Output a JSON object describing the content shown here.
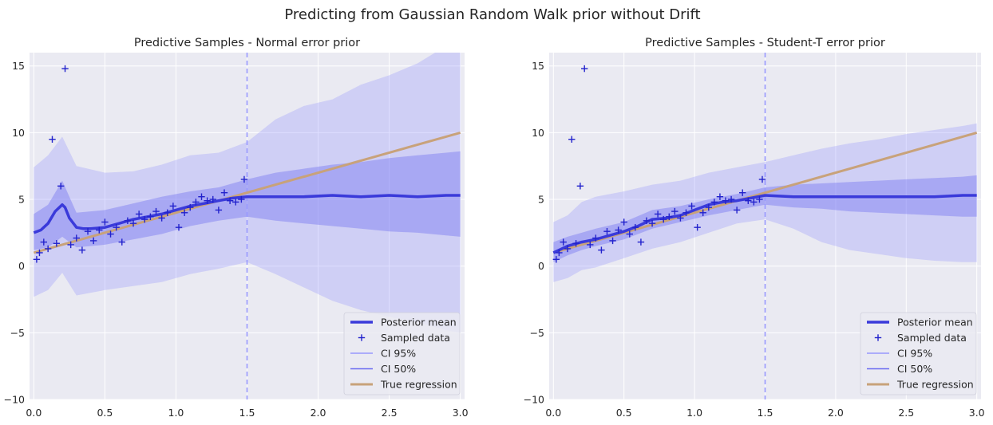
{
  "figure": {
    "suptitle": "Predicting from Gaussian Random Walk prior without Drift"
  },
  "colors": {
    "axes_bg": "#EAEAF2",
    "grid": "#ffffff",
    "mean": "#3A3ADA",
    "data_marker": "#2222CC",
    "ci95": "#8888FF",
    "ci50": "#6A6AF0",
    "regression": "#C8A27A",
    "vline": "#9999FF"
  },
  "chart_data": [
    {
      "type": "line",
      "title": "Predictive Samples - Normal error prior",
      "xlabel": "",
      "ylabel": "",
      "xlim": [
        -0.03,
        3.03
      ],
      "ylim": [
        -10,
        16
      ],
      "xticks": [
        0.0,
        0.5,
        1.0,
        1.5,
        2.0,
        2.5,
        3.0
      ],
      "xtick_labels": [
        "0.0",
        "0.5",
        "1.0",
        "1.5",
        "2.0",
        "2.5",
        "3.0"
      ],
      "yticks": [
        -10,
        -5,
        0,
        5,
        10,
        15
      ],
      "ytick_labels": [
        "−10",
        "−5",
        "0",
        "5",
        "10",
        "15"
      ],
      "grid": true,
      "legend_position": "lower-right",
      "vline_x": 1.5,
      "legend": [
        "Posterior mean",
        "Sampled data",
        "CI 95%",
        "CI 50%",
        "True regression"
      ],
      "series": [
        {
          "name": "Posterior mean",
          "x": [
            0.0,
            0.05,
            0.1,
            0.15,
            0.2,
            0.22,
            0.25,
            0.3,
            0.35,
            0.4,
            0.5,
            0.6,
            0.7,
            0.8,
            0.9,
            1.0,
            1.1,
            1.2,
            1.3,
            1.4,
            1.5,
            1.7,
            1.9,
            2.1,
            2.3,
            2.5,
            2.7,
            2.9,
            3.0
          ],
          "y": [
            2.5,
            2.7,
            3.2,
            4.1,
            4.6,
            4.4,
            3.6,
            2.9,
            2.8,
            2.8,
            2.9,
            3.2,
            3.5,
            3.7,
            3.9,
            4.2,
            4.5,
            4.7,
            4.9,
            5.1,
            5.2,
            5.2,
            5.2,
            5.3,
            5.2,
            5.3,
            5.2,
            5.3,
            5.3
          ]
        },
        {
          "name": "Sampled data",
          "x": [
            0.02,
            0.04,
            0.07,
            0.1,
            0.13,
            0.16,
            0.19,
            0.22,
            0.26,
            0.3,
            0.34,
            0.38,
            0.42,
            0.46,
            0.5,
            0.54,
            0.58,
            0.62,
            0.66,
            0.7,
            0.74,
            0.78,
            0.82,
            0.86,
            0.9,
            0.94,
            0.98,
            1.02,
            1.06,
            1.1,
            1.14,
            1.18,
            1.22,
            1.26,
            1.3,
            1.34,
            1.38,
            1.42,
            1.46,
            1.48
          ],
          "y": [
            0.5,
            1.0,
            1.8,
            1.3,
            9.5,
            1.7,
            6.0,
            14.8,
            1.6,
            2.1,
            1.2,
            2.6,
            1.9,
            2.7,
            3.3,
            2.4,
            2.9,
            1.8,
            3.4,
            3.2,
            3.9,
            3.5,
            3.7,
            4.1,
            3.6,
            4.0,
            4.5,
            2.9,
            4.0,
            4.4,
            4.8,
            5.2,
            4.9,
            5.0,
            4.2,
            5.5,
            4.9,
            4.8,
            5.0,
            6.5
          ]
        },
        {
          "name": "CI 95%",
          "x": [
            0.0,
            0.1,
            0.2,
            0.3,
            0.5,
            0.7,
            0.9,
            1.1,
            1.3,
            1.5,
            1.7,
            1.9,
            2.1,
            2.3,
            2.5,
            2.7,
            2.9,
            3.0
          ],
          "lower": [
            -2.3,
            -1.8,
            -0.5,
            -2.2,
            -1.8,
            -1.5,
            -1.2,
            -0.6,
            -0.2,
            0.3,
            -0.6,
            -1.6,
            -2.6,
            -3.3,
            -3.8,
            -4.2,
            -4.8,
            -5.0
          ],
          "upper": [
            7.4,
            8.3,
            9.7,
            7.5,
            7.0,
            7.1,
            7.6,
            8.3,
            8.5,
            9.3,
            11.0,
            12.0,
            12.5,
            13.6,
            14.3,
            15.2,
            16.5,
            16.9
          ]
        },
        {
          "name": "CI 50%",
          "x": [
            0.0,
            0.1,
            0.2,
            0.3,
            0.5,
            0.7,
            0.9,
            1.1,
            1.3,
            1.5,
            1.7,
            1.9,
            2.1,
            2.3,
            2.5,
            2.7,
            2.9,
            3.0
          ],
          "lower": [
            1.2,
            1.4,
            2.2,
            1.4,
            1.6,
            2.0,
            2.4,
            3.0,
            3.4,
            3.7,
            3.4,
            3.2,
            3.0,
            2.8,
            2.6,
            2.5,
            2.3,
            2.2
          ],
          "upper": [
            3.9,
            4.6,
            6.4,
            4.0,
            4.2,
            4.7,
            5.2,
            5.6,
            5.9,
            6.5,
            7.0,
            7.3,
            7.6,
            7.8,
            8.1,
            8.3,
            8.5,
            8.6
          ]
        },
        {
          "name": "True regression",
          "x": [
            0.0,
            3.0
          ],
          "y": [
            1.0,
            10.0
          ]
        }
      ]
    },
    {
      "type": "line",
      "title": "Predictive Samples - Student-T error prior",
      "xlabel": "",
      "ylabel": "",
      "xlim": [
        -0.03,
        3.03
      ],
      "ylim": [
        -10,
        16
      ],
      "xticks": [
        0.0,
        0.5,
        1.0,
        1.5,
        2.0,
        2.5,
        3.0
      ],
      "xtick_labels": [
        "0.0",
        "0.5",
        "1.0",
        "1.5",
        "2.0",
        "2.5",
        "3.0"
      ],
      "yticks": [
        -10,
        -5,
        0,
        5,
        10,
        15
      ],
      "ytick_labels": [
        "−10",
        "−5",
        "0",
        "5",
        "10",
        "15"
      ],
      "grid": true,
      "legend_position": "lower-right",
      "vline_x": 1.5,
      "legend": [
        "Posterior mean",
        "Sampled data",
        "CI 95%",
        "CI 50%",
        "True regression"
      ],
      "series": [
        {
          "name": "Posterior mean",
          "x": [
            0.0,
            0.1,
            0.2,
            0.3,
            0.4,
            0.5,
            0.6,
            0.7,
            0.8,
            0.9,
            1.0,
            1.1,
            1.2,
            1.3,
            1.4,
            1.5,
            1.7,
            1.9,
            2.1,
            2.3,
            2.5,
            2.7,
            2.9,
            3.0
          ],
          "y": [
            1.0,
            1.5,
            1.8,
            2.0,
            2.3,
            2.6,
            3.0,
            3.5,
            3.6,
            3.8,
            4.2,
            4.6,
            4.8,
            4.9,
            5.1,
            5.3,
            5.2,
            5.2,
            5.2,
            5.2,
            5.2,
            5.2,
            5.3,
            5.3
          ]
        },
        {
          "name": "Sampled data",
          "x": [
            0.02,
            0.04,
            0.07,
            0.1,
            0.13,
            0.16,
            0.19,
            0.22,
            0.26,
            0.3,
            0.34,
            0.38,
            0.42,
            0.46,
            0.5,
            0.54,
            0.58,
            0.62,
            0.66,
            0.7,
            0.74,
            0.78,
            0.82,
            0.86,
            0.9,
            0.94,
            0.98,
            1.02,
            1.06,
            1.1,
            1.14,
            1.18,
            1.22,
            1.26,
            1.3,
            1.34,
            1.38,
            1.42,
            1.46,
            1.48
          ],
          "y": [
            0.5,
            1.0,
            1.8,
            1.3,
            9.5,
            1.7,
            6.0,
            14.8,
            1.6,
            2.1,
            1.2,
            2.6,
            1.9,
            2.7,
            3.3,
            2.4,
            2.9,
            1.8,
            3.4,
            3.2,
            3.9,
            3.5,
            3.7,
            4.1,
            3.6,
            4.0,
            4.5,
            2.9,
            4.0,
            4.4,
            4.8,
            5.2,
            4.9,
            5.0,
            4.2,
            5.5,
            4.9,
            4.8,
            5.0,
            6.5
          ]
        },
        {
          "name": "CI 95%",
          "x": [
            0.0,
            0.1,
            0.2,
            0.3,
            0.5,
            0.7,
            0.9,
            1.1,
            1.3,
            1.5,
            1.7,
            1.9,
            2.1,
            2.3,
            2.5,
            2.7,
            2.9,
            3.0
          ],
          "lower": [
            -1.2,
            -0.9,
            -0.3,
            -0.1,
            0.6,
            1.3,
            1.8,
            2.5,
            3.2,
            3.5,
            2.8,
            1.8,
            1.2,
            0.9,
            0.6,
            0.4,
            0.3,
            0.3
          ],
          "upper": [
            3.3,
            3.8,
            4.8,
            5.2,
            5.6,
            6.1,
            6.4,
            7.0,
            7.4,
            7.8,
            8.3,
            8.8,
            9.2,
            9.5,
            9.9,
            10.2,
            10.5,
            10.7
          ]
        },
        {
          "name": "CI 50%",
          "x": [
            0.0,
            0.1,
            0.2,
            0.3,
            0.5,
            0.7,
            0.9,
            1.1,
            1.3,
            1.5,
            1.7,
            1.9,
            2.1,
            2.3,
            2.5,
            2.7,
            2.9,
            3.0
          ],
          "lower": [
            0.3,
            0.8,
            1.2,
            1.5,
            2.0,
            2.8,
            3.3,
            3.8,
            4.2,
            4.6,
            4.4,
            4.3,
            4.1,
            4.0,
            3.9,
            3.8,
            3.7,
            3.7
          ],
          "upper": [
            1.8,
            2.2,
            2.5,
            2.8,
            3.3,
            4.2,
            4.5,
            5.0,
            5.4,
            5.9,
            6.1,
            6.2,
            6.3,
            6.4,
            6.5,
            6.6,
            6.7,
            6.8
          ]
        },
        {
          "name": "True regression",
          "x": [
            0.0,
            3.0
          ],
          "y": [
            1.0,
            10.0
          ]
        }
      ]
    }
  ]
}
